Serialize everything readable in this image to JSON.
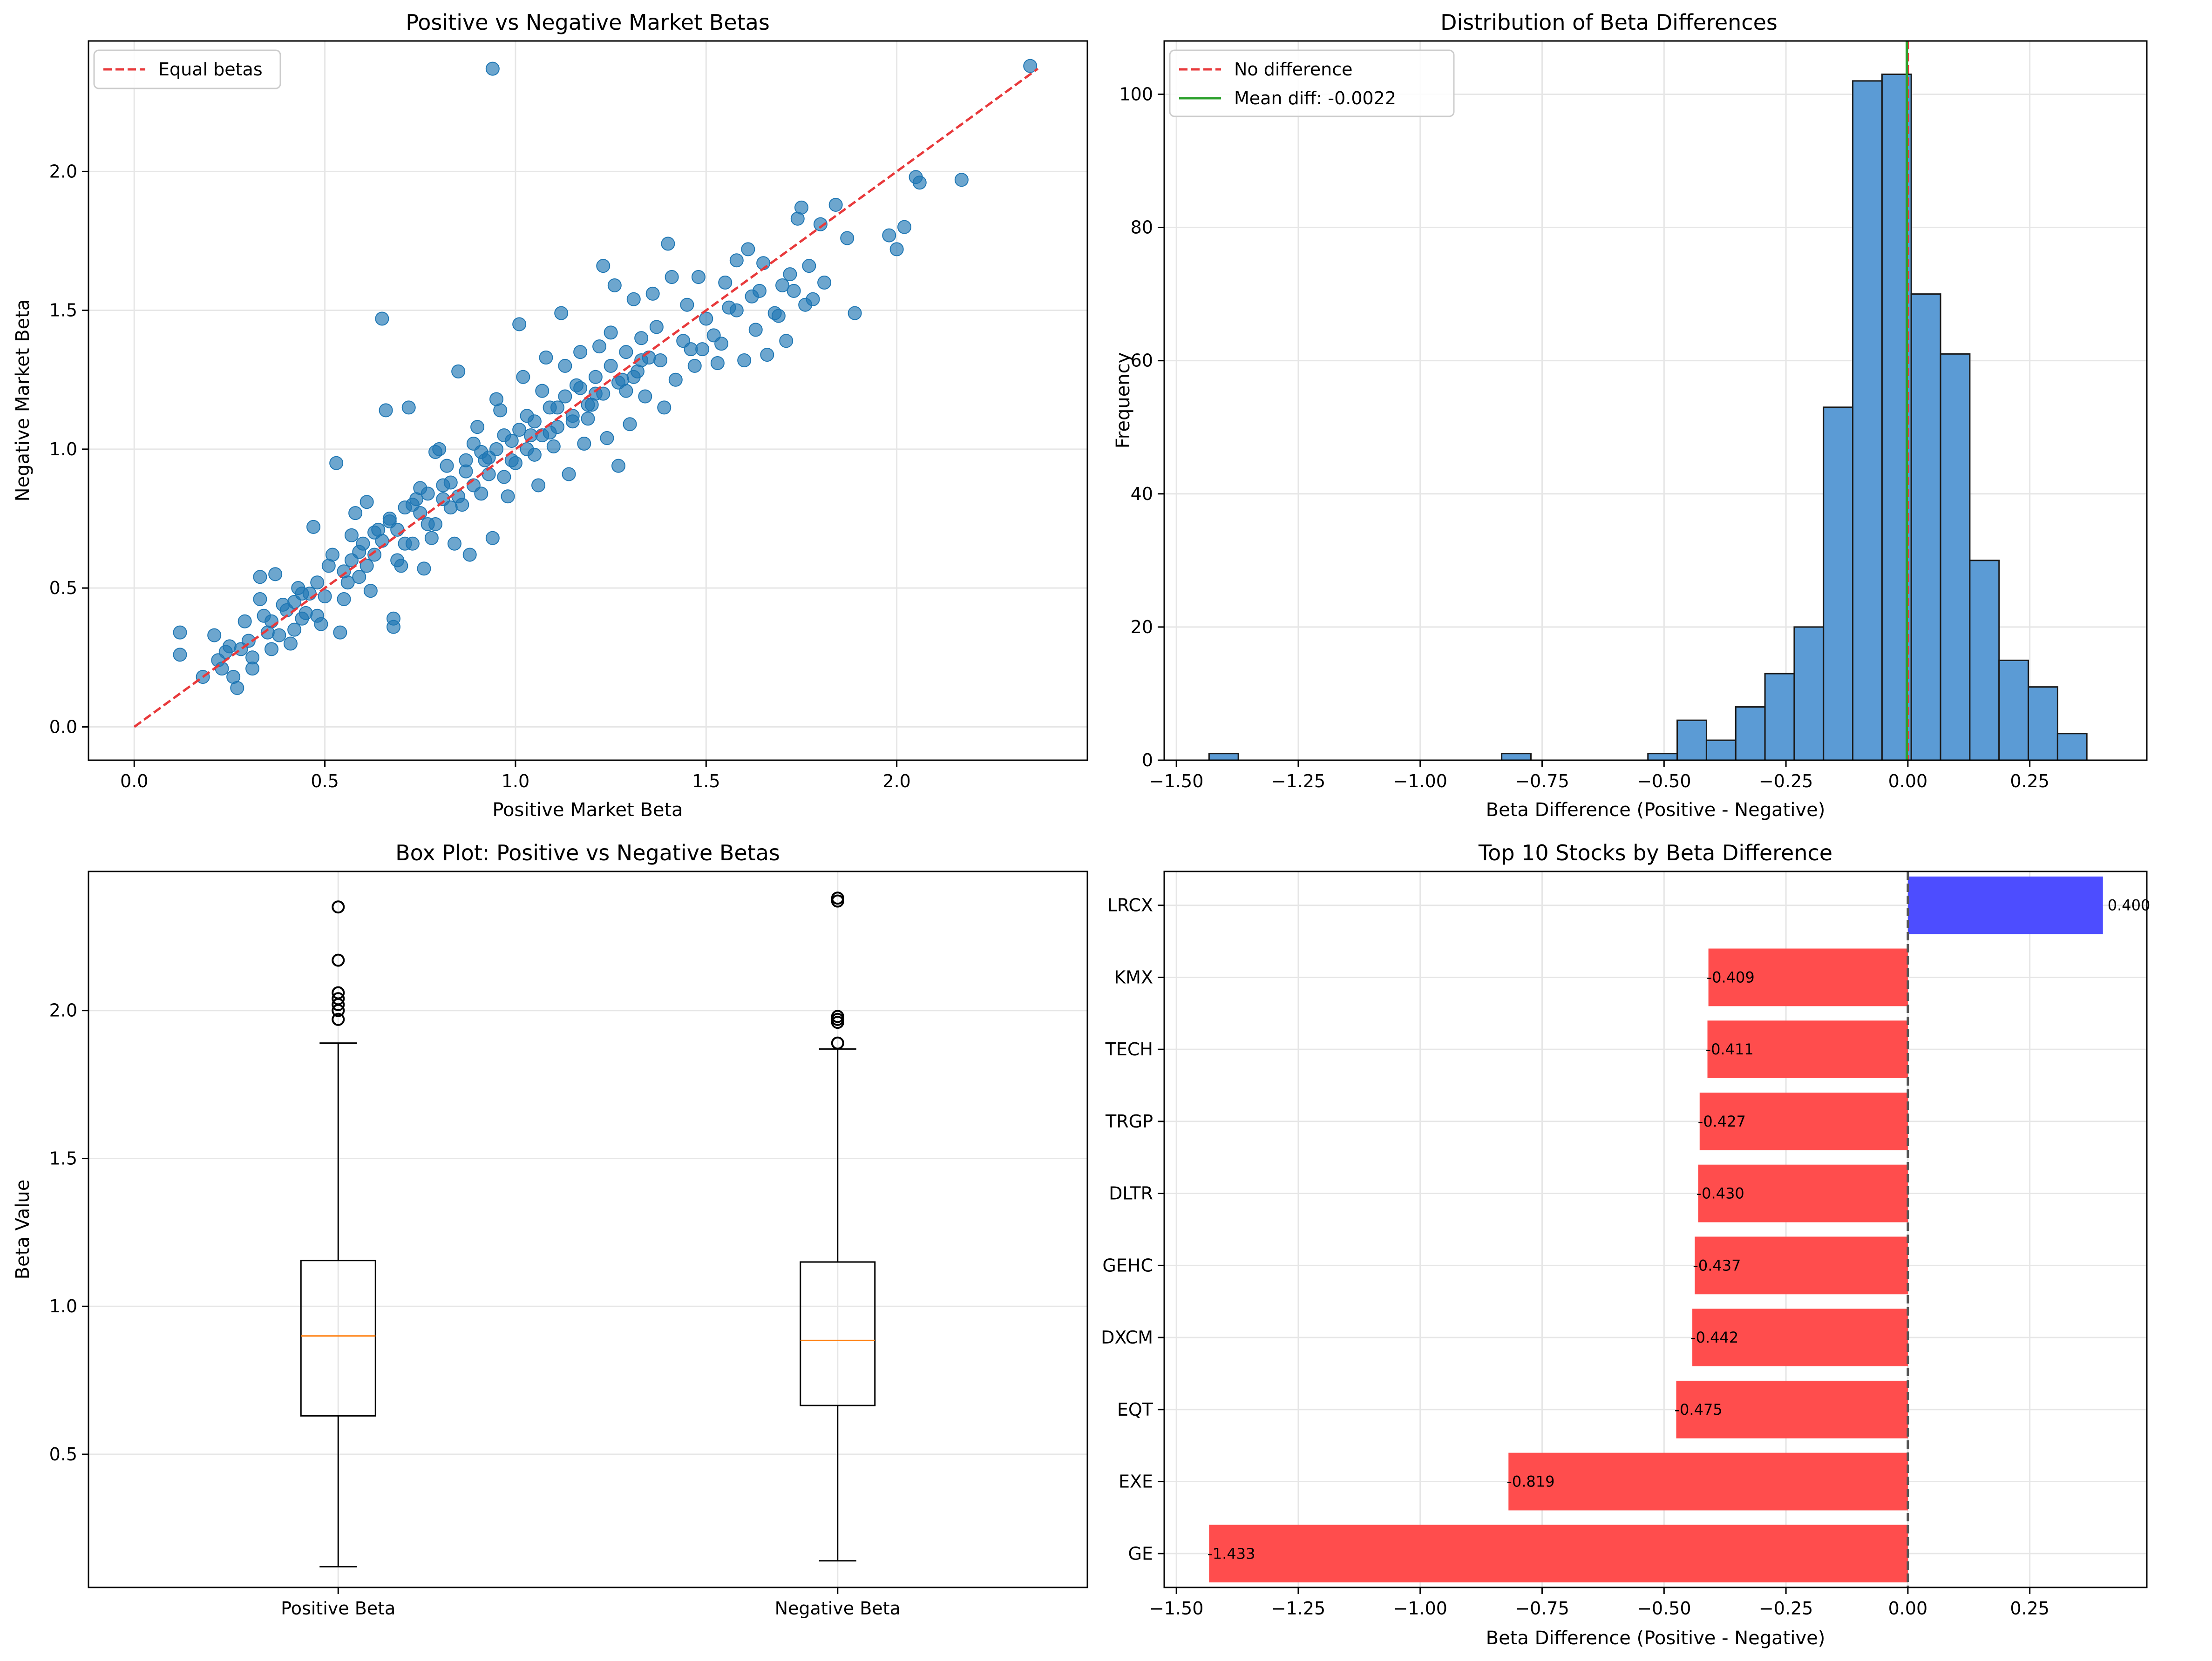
{
  "chart_data": [
    {
      "type": "scatter",
      "title": "Positive vs Negative Market Betas",
      "xlabel": "Positive Market Beta",
      "ylabel": "Negative Market Beta",
      "xlim": [
        -0.12,
        2.5
      ],
      "ylim": [
        -0.12,
        2.47
      ],
      "xticks": [
        0.0,
        0.5,
        1.0,
        1.5,
        2.0
      ],
      "xtick_labels": [
        "0.0",
        "0.5",
        "1.0",
        "1.5",
        "2.0"
      ],
      "yticks": [
        0.0,
        0.5,
        1.0,
        1.5,
        2.0
      ],
      "ytick_labels": [
        "0.0",
        "0.5",
        "1.0",
        "1.5",
        "2.0"
      ],
      "grid": true,
      "legend": {
        "position": "top-left",
        "entries": [
          {
            "label": "Equal betas",
            "color": "#e8393b",
            "style": "dashed-line"
          }
        ]
      },
      "reference_line": {
        "label": "Equal betas",
        "x": [
          0.0,
          2.37
        ],
        "y": [
          0.0,
          2.37
        ],
        "color": "#e8393b"
      },
      "point_color": "#1f77b4",
      "points": [
        [
          0.94,
          2.37
        ],
        [
          2.35,
          2.38
        ],
        [
          2.17,
          1.97
        ],
        [
          2.06,
          1.96
        ],
        [
          2.05,
          1.98
        ],
        [
          2.02,
          1.8
        ],
        [
          2.0,
          1.72
        ],
        [
          1.98,
          1.77
        ],
        [
          1.89,
          1.49
        ],
        [
          1.87,
          1.76
        ],
        [
          1.81,
          1.6
        ],
        [
          1.8,
          1.81
        ],
        [
          1.84,
          1.88
        ],
        [
          1.77,
          1.66
        ],
        [
          1.75,
          1.87
        ],
        [
          1.74,
          1.83
        ],
        [
          1.72,
          1.63
        ],
        [
          1.7,
          1.59
        ],
        [
          1.65,
          1.67
        ],
        [
          1.63,
          1.43
        ],
        [
          1.66,
          1.34
        ],
        [
          1.61,
          1.72
        ],
        [
          1.58,
          1.68
        ],
        [
          1.55,
          1.6
        ],
        [
          1.52,
          1.41
        ],
        [
          1.49,
          1.36
        ],
        [
          1.47,
          1.3
        ],
        [
          1.45,
          1.52
        ],
        [
          1.44,
          1.39
        ],
        [
          1.4,
          1.74
        ],
        [
          1.37,
          1.44
        ],
        [
          1.33,
          1.32
        ],
        [
          1.31,
          1.54
        ],
        [
          1.28,
          1.25
        ],
        [
          1.25,
          1.42
        ],
        [
          1.23,
          1.66
        ],
        [
          1.21,
          1.2
        ],
        [
          1.19,
          1.11
        ],
        [
          1.17,
          1.35
        ],
        [
          1.15,
          1.1
        ],
        [
          1.13,
          1.3
        ],
        [
          1.11,
          1.15
        ],
        [
          1.09,
          1.06
        ],
        [
          1.07,
          1.21
        ],
        [
          1.05,
          0.98
        ],
        [
          1.03,
          1.12
        ],
        [
          1.01,
          1.45
        ],
        [
          0.99,
          1.03
        ],
        [
          0.97,
          0.9
        ],
        [
          0.95,
          1.18
        ],
        [
          0.93,
          0.97
        ],
        [
          0.91,
          0.84
        ],
        [
          0.89,
          1.02
        ],
        [
          0.87,
          0.92
        ],
        [
          0.85,
          1.28
        ],
        [
          0.83,
          0.79
        ],
        [
          0.81,
          0.87
        ],
        [
          0.79,
          0.99
        ],
        [
          0.77,
          0.73
        ],
        [
          0.75,
          0.86
        ],
        [
          0.73,
          0.66
        ],
        [
          0.71,
          0.79
        ],
        [
          0.69,
          0.6
        ],
        [
          0.67,
          0.74
        ],
        [
          0.65,
          1.47
        ],
        [
          0.66,
          1.14
        ],
        [
          0.63,
          0.62
        ],
        [
          0.61,
          0.81
        ],
        [
          0.59,
          0.54
        ],
        [
          0.57,
          0.69
        ],
        [
          0.55,
          0.46
        ],
        [
          0.53,
          0.95
        ],
        [
          0.51,
          0.58
        ],
        [
          0.49,
          0.37
        ],
        [
          0.47,
          0.72
        ],
        [
          0.45,
          0.41
        ],
        [
          0.43,
          0.5
        ],
        [
          0.41,
          0.3
        ],
        [
          0.39,
          0.44
        ],
        [
          0.37,
          0.55
        ],
        [
          0.35,
          0.34
        ],
        [
          0.33,
          0.46
        ],
        [
          0.31,
          0.25
        ],
        [
          0.29,
          0.38
        ],
        [
          0.27,
          0.14
        ],
        [
          0.25,
          0.29
        ],
        [
          0.23,
          0.21
        ],
        [
          0.21,
          0.33
        ],
        [
          0.18,
          0.18
        ],
        [
          0.12,
          0.34
        ],
        [
          0.12,
          0.26
        ],
        [
          0.26,
          0.18
        ],
        [
          0.31,
          0.21
        ],
        [
          0.33,
          0.54
        ],
        [
          0.36,
          0.28
        ],
        [
          0.42,
          0.35
        ],
        [
          0.44,
          0.48
        ],
        [
          0.48,
          0.4
        ],
        [
          0.52,
          0.62
        ],
        [
          0.54,
          0.34
        ],
        [
          0.56,
          0.52
        ],
        [
          0.58,
          0.77
        ],
        [
          0.6,
          0.66
        ],
        [
          0.62,
          0.49
        ],
        [
          0.64,
          0.71
        ],
        [
          0.68,
          0.39
        ],
        [
          0.68,
          0.36
        ],
        [
          0.7,
          0.58
        ],
        [
          0.72,
          1.15
        ],
        [
          0.74,
          0.82
        ],
        [
          0.76,
          0.57
        ],
        [
          0.78,
          0.68
        ],
        [
          0.8,
          1.0
        ],
        [
          0.82,
          0.94
        ],
        [
          0.84,
          0.66
        ],
        [
          0.86,
          0.8
        ],
        [
          0.88,
          0.62
        ],
        [
          0.9,
          1.08
        ],
        [
          0.92,
          0.96
        ],
        [
          0.94,
          0.68
        ],
        [
          0.96,
          1.14
        ],
        [
          0.98,
          0.83
        ],
        [
          1.0,
          0.95
        ],
        [
          1.02,
          1.26
        ],
        [
          1.04,
          1.05
        ],
        [
          1.06,
          0.87
        ],
        [
          1.08,
          1.33
        ],
        [
          1.1,
          1.01
        ],
        [
          1.12,
          1.49
        ],
        [
          1.14,
          0.91
        ],
        [
          1.16,
          1.23
        ],
        [
          1.18,
          1.02
        ],
        [
          1.2,
          1.16
        ],
        [
          1.22,
          1.37
        ],
        [
          1.24,
          1.04
        ],
        [
          1.26,
          1.59
        ],
        [
          1.27,
          0.94
        ],
        [
          1.29,
          1.21
        ],
        [
          1.3,
          1.09
        ],
        [
          1.32,
          1.28
        ],
        [
          1.34,
          1.19
        ],
        [
          1.36,
          1.56
        ],
        [
          1.38,
          1.32
        ],
        [
          1.39,
          1.15
        ],
        [
          1.41,
          1.62
        ],
        [
          1.42,
          1.25
        ],
        [
          1.46,
          1.36
        ],
        [
          1.48,
          1.62
        ],
        [
          1.5,
          1.47
        ],
        [
          1.53,
          1.31
        ],
        [
          1.54,
          1.38
        ],
        [
          1.56,
          1.51
        ],
        [
          1.58,
          1.5
        ],
        [
          1.6,
          1.32
        ],
        [
          1.62,
          1.55
        ],
        [
          1.64,
          1.57
        ],
        [
          1.68,
          1.49
        ],
        [
          1.69,
          1.48
        ],
        [
          1.71,
          1.39
        ],
        [
          1.73,
          1.57
        ],
        [
          1.76,
          1.52
        ],
        [
          1.78,
          1.54
        ],
        [
          0.55,
          0.56
        ],
        [
          0.57,
          0.6
        ],
        [
          0.59,
          0.63
        ],
        [
          0.61,
          0.58
        ],
        [
          0.63,
          0.7
        ],
        [
          0.65,
          0.67
        ],
        [
          0.67,
          0.75
        ],
        [
          0.69,
          0.71
        ],
        [
          0.71,
          0.66
        ],
        [
          0.73,
          0.8
        ],
        [
          0.75,
          0.77
        ],
        [
          0.77,
          0.84
        ],
        [
          0.79,
          0.73
        ],
        [
          0.81,
          0.82
        ],
        [
          0.83,
          0.88
        ],
        [
          0.85,
          0.83
        ],
        [
          0.87,
          0.96
        ],
        [
          0.89,
          0.87
        ],
        [
          0.91,
          0.99
        ],
        [
          0.93,
          0.91
        ],
        [
          0.95,
          1.0
        ],
        [
          0.97,
          1.05
        ],
        [
          0.99,
          0.96
        ],
        [
          1.01,
          1.07
        ],
        [
          1.03,
          1.0
        ],
        [
          1.05,
          1.1
        ],
        [
          1.07,
          1.05
        ],
        [
          1.09,
          1.15
        ],
        [
          1.11,
          1.08
        ],
        [
          1.13,
          1.19
        ],
        [
          1.15,
          1.12
        ],
        [
          1.17,
          1.22
        ],
        [
          1.19,
          1.16
        ],
        [
          1.21,
          1.26
        ],
        [
          1.23,
          1.2
        ],
        [
          1.25,
          1.3
        ],
        [
          1.27,
          1.24
        ],
        [
          1.29,
          1.35
        ],
        [
          1.31,
          1.26
        ],
        [
          1.33,
          1.4
        ],
        [
          1.35,
          1.33
        ],
        [
          0.4,
          0.42
        ],
        [
          0.42,
          0.45
        ],
        [
          0.44,
          0.39
        ],
        [
          0.46,
          0.48
        ],
        [
          0.48,
          0.52
        ],
        [
          0.5,
          0.47
        ],
        [
          0.36,
          0.38
        ],
        [
          0.38,
          0.33
        ],
        [
          0.34,
          0.4
        ],
        [
          0.3,
          0.31
        ],
        [
          0.28,
          0.28
        ],
        [
          0.24,
          0.27
        ],
        [
          0.22,
          0.24
        ]
      ]
    },
    {
      "type": "bar",
      "title": "Distribution of Beta Differences",
      "xlabel": "Beta Difference (Positive - Negative)",
      "ylabel": "Frequency",
      "xlim": [
        -1.525,
        0.49
      ],
      "ylim": [
        0,
        108
      ],
      "xticks": [
        -1.5,
        -1.25,
        -1.0,
        -0.75,
        -0.5,
        -0.25,
        0.0,
        0.25
      ],
      "xtick_labels": [
        "−1.50",
        "−1.25",
        "−1.00",
        "−0.75",
        "−0.50",
        "−0.25",
        "0.00",
        "0.25"
      ],
      "yticks": [
        0,
        20,
        40,
        60,
        80,
        100
      ],
      "ytick_labels": [
        "0",
        "20",
        "40",
        "60",
        "80",
        "100"
      ],
      "grid": true,
      "bin_width": 0.06,
      "bin_starts": [
        -1.433,
        -1.373,
        -1.313,
        -1.253,
        -1.193,
        -1.133,
        -1.073,
        -1.013,
        -0.953,
        -0.893,
        -0.833,
        -0.773,
        -0.713,
        -0.653,
        -0.593,
        -0.533,
        -0.473,
        -0.413,
        -0.353,
        -0.293,
        -0.233,
        -0.173,
        -0.113,
        -0.053,
        0.007,
        0.067,
        0.127,
        0.187,
        0.247,
        0.307,
        0.367
      ],
      "counts": [
        1,
        0,
        0,
        0,
        0,
        0,
        0,
        0,
        0,
        0,
        1,
        0,
        0,
        0,
        0,
        1,
        6,
        3,
        8,
        13,
        20,
        53,
        102,
        103,
        70,
        61,
        30,
        15,
        11,
        4,
        0
      ],
      "bar_color": "#5b9bd5",
      "vlines": [
        {
          "label": "No difference",
          "x": 0.0,
          "color": "#e8393b",
          "style": "dashed"
        },
        {
          "label": "Mean diff: -0.0022",
          "x": -0.0022,
          "color": "#2ca02c",
          "style": "solid"
        }
      ],
      "legend": {
        "position": "top-left",
        "entries": [
          {
            "label": "No difference",
            "color": "#e8393b",
            "style": "dashed-line"
          },
          {
            "label": "Mean diff: -0.0022",
            "color": "#2ca02c",
            "style": "solid-line"
          }
        ]
      }
    },
    {
      "type": "box",
      "title": "Box Plot: Positive vs Negative Betas",
      "ylabel": "Beta Value",
      "ylim": [
        0.05,
        2.47
      ],
      "yticks": [
        0.5,
        1.0,
        1.5,
        2.0
      ],
      "ytick_labels": [
        "0.5",
        "1.0",
        "1.5",
        "2.0"
      ],
      "grid": true,
      "median_color": "#ff7f0e",
      "boxes": [
        {
          "label": "Positive Beta",
          "whisker_low": 0.12,
          "q1": 0.63,
          "median": 0.9,
          "q3": 1.155,
          "whisker_high": 1.89,
          "outliers": [
            1.97,
            2.0,
            2.02,
            2.04,
            2.06,
            2.17,
            2.35
          ]
        },
        {
          "label": "Negative Beta",
          "whisker_low": 0.14,
          "q1": 0.665,
          "median": 0.885,
          "q3": 1.15,
          "whisker_high": 1.87,
          "outliers": [
            1.89,
            1.96,
            1.97,
            1.98,
            2.37,
            2.38
          ]
        }
      ]
    },
    {
      "type": "barh",
      "title": "Top 10 Stocks by Beta Difference",
      "xlabel": "Beta Difference (Positive - Negative)",
      "xlim": [
        -1.525,
        0.49
      ],
      "xticks": [
        -1.5,
        -1.25,
        -1.0,
        -0.75,
        -0.5,
        -0.25,
        0.0,
        0.25
      ],
      "xtick_labels": [
        "−1.50",
        "−1.25",
        "−1.00",
        "−0.75",
        "−0.50",
        "−0.25",
        "0.00",
        "0.25"
      ],
      "grid": true,
      "categories": [
        "LRCX",
        "KMX",
        "TECH",
        "TRGP",
        "DLTR",
        "GEHC",
        "DXCM",
        "EQT",
        "EXE",
        "GE"
      ],
      "values": [
        0.4,
        -0.409,
        -0.411,
        -0.427,
        -0.43,
        -0.437,
        -0.442,
        -0.475,
        -0.819,
        -1.433
      ],
      "value_labels": [
        "0.400",
        "-0.409",
        "-0.411",
        "-0.427",
        "-0.430",
        "-0.437",
        "-0.442",
        "-0.475",
        "-0.819",
        "-1.433"
      ],
      "positive_color": "#4d4dff",
      "negative_color": "#ff4d4d",
      "vline": {
        "x": 0.0,
        "color": "#555555",
        "style": "dashed"
      }
    }
  ]
}
